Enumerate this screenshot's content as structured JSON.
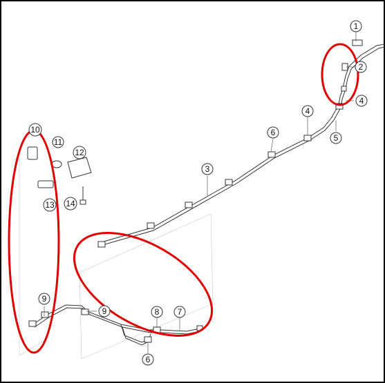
{
  "diagram": {
    "highlight_color": "#e00000",
    "line_color": "#333333",
    "callouts": [
      {
        "id": "c1",
        "label": "1"
      },
      {
        "id": "c2",
        "label": "2"
      },
      {
        "id": "c4a",
        "label": "4"
      },
      {
        "id": "c4b",
        "label": "4"
      },
      {
        "id": "c5",
        "label": "5"
      },
      {
        "id": "c6a",
        "label": "6"
      },
      {
        "id": "c3",
        "label": "3"
      },
      {
        "id": "c10",
        "label": "10"
      },
      {
        "id": "c11",
        "label": "11"
      },
      {
        "id": "c12",
        "label": "12"
      },
      {
        "id": "c13",
        "label": "13"
      },
      {
        "id": "c14",
        "label": "14"
      },
      {
        "id": "c9a",
        "label": "9"
      },
      {
        "id": "c9b",
        "label": "9"
      },
      {
        "id": "c8",
        "label": "8"
      },
      {
        "id": "c7",
        "label": "7"
      },
      {
        "id": "c6b",
        "label": "6"
      }
    ]
  }
}
